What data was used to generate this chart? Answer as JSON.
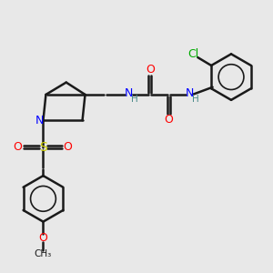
{
  "bg_color": "#e8e8e8",
  "bond_color": "#1a1a1a",
  "colors": {
    "N": "#0000ff",
    "O": "#ff0000",
    "S": "#cccc00",
    "Cl": "#00aa00",
    "C": "#1a1a1a",
    "H": "#4a8a8a"
  },
  "figsize": [
    3.0,
    3.0
  ],
  "dpi": 100
}
